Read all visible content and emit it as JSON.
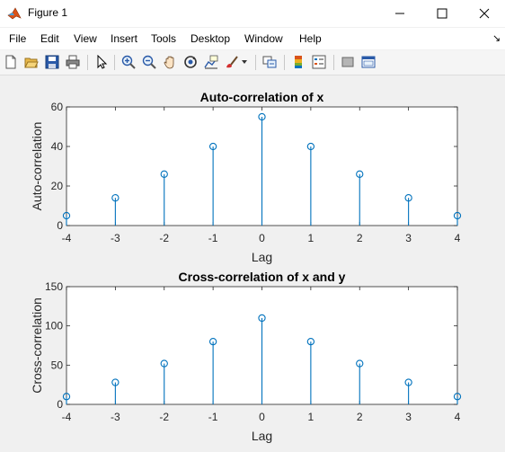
{
  "window": {
    "title": "Figure 1",
    "controls": {
      "minimize": "—",
      "maximize": "☐",
      "close": "✕"
    }
  },
  "menubar": {
    "items": [
      "File",
      "Edit",
      "View",
      "Insert",
      "Tools",
      "Desktop",
      "Window",
      "Help"
    ],
    "dock_arrow": "↘"
  },
  "toolbar": {
    "icons": [
      "new-figure-icon",
      "open-file-icon",
      "save-icon",
      "print-icon",
      "pointer-icon",
      "zoom-in-icon",
      "zoom-out-icon",
      "pan-icon",
      "rotate-3d-icon",
      "data-cursor-icon",
      "brush-icon",
      "link-plot-icon",
      "colorbar-icon",
      "legend-icon",
      "hide-plot-tools-icon",
      "show-plot-tools-icon"
    ]
  },
  "colors": {
    "stem": "#0072bd",
    "axes_bg": "#ffffff",
    "figure_bg": "#f0f0f0"
  },
  "chart_data": [
    {
      "type": "stem",
      "title": "Auto-correlation of x",
      "xlabel": "Lag",
      "ylabel": "Auto-correlation",
      "x": [
        -4,
        -3,
        -2,
        -1,
        0,
        1,
        2,
        3,
        4
      ],
      "values": [
        5,
        14,
        26,
        40,
        55,
        40,
        26,
        14,
        5
      ],
      "xlim": [
        -4,
        4
      ],
      "ylim": [
        0,
        60
      ],
      "xticks": [
        -4,
        -3,
        -2,
        -1,
        0,
        1,
        2,
        3,
        4
      ],
      "yticks": [
        0,
        20,
        40,
        60
      ],
      "grid": false
    },
    {
      "type": "stem",
      "title": "Cross-correlation of x and y",
      "xlabel": "Lag",
      "ylabel": "Cross-correlation",
      "x": [
        -4,
        -3,
        -2,
        -1,
        0,
        1,
        2,
        3,
        4
      ],
      "values": [
        10,
        28,
        52,
        80,
        110,
        80,
        52,
        28,
        10
      ],
      "xlim": [
        -4,
        4
      ],
      "ylim": [
        0,
        150
      ],
      "xticks": [
        -4,
        -3,
        -2,
        -1,
        0,
        1,
        2,
        3,
        4
      ],
      "yticks": [
        0,
        50,
        100,
        150
      ],
      "grid": false
    }
  ]
}
